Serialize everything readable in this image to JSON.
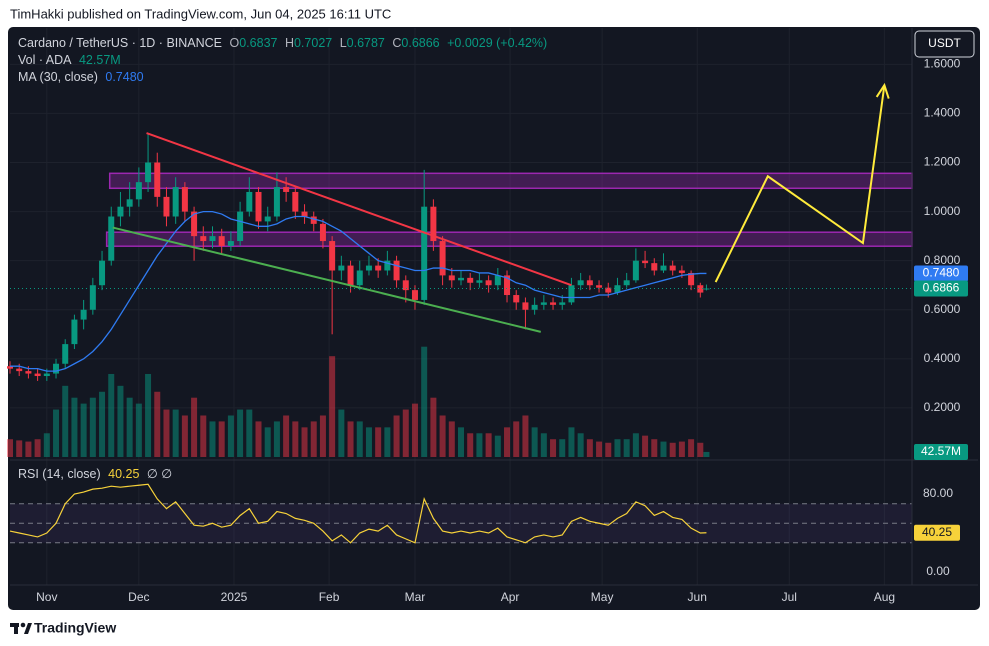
{
  "header": "TimHakki published on TradingView.com, Jun 04, 2025 16:11 UTC",
  "currency_button": "USDT",
  "footer_logo": "TradingView",
  "chart_data": [
    {
      "type": "candlestick",
      "symbol": "Cardano / TetherUS · 1D · BINANCE",
      "ohlc_letters": [
        "O",
        "H",
        "L",
        "C"
      ],
      "change": "+0.0029 (+0.42%)",
      "x": [
        -12,
        -9,
        -6,
        -3,
        0,
        3,
        6,
        9,
        12,
        15,
        18,
        21,
        24,
        27,
        30,
        33,
        36,
        39,
        42,
        45,
        48,
        51,
        54,
        57,
        60,
        63,
        66,
        69,
        72,
        75,
        78,
        81,
        84,
        87,
        90,
        93,
        96,
        99,
        102,
        105,
        108,
        111,
        114,
        117,
        120,
        123,
        126,
        129,
        132,
        135,
        138,
        141,
        144,
        147,
        150,
        153,
        156,
        159,
        162,
        165,
        168,
        171,
        174,
        177,
        180,
        183,
        186,
        189,
        192,
        195,
        198,
        201,
        204,
        207,
        210,
        213,
        215
      ],
      "open": [
        0.37,
        0.36,
        0.35,
        0.34,
        0.33,
        0.34,
        0.38,
        0.46,
        0.56,
        0.6,
        0.7,
        0.8,
        0.98,
        1.02,
        1.05,
        1.12,
        1.2,
        1.06,
        0.98,
        1.1,
        1.0,
        0.9,
        0.88,
        0.9,
        0.86,
        0.88,
        1.0,
        1.08,
        0.96,
        0.98,
        1.1,
        1.08,
        1.0,
        0.98,
        0.95,
        0.88,
        0.76,
        0.78,
        0.7,
        0.76,
        0.78,
        0.76,
        0.8,
        0.72,
        0.68,
        0.64,
        1.02,
        0.88,
        0.74,
        0.72,
        0.73,
        0.71,
        0.72,
        0.7,
        0.74,
        0.66,
        0.63,
        0.6,
        0.62,
        0.63,
        0.62,
        0.63,
        0.7,
        0.72,
        0.7,
        0.69,
        0.67,
        0.7,
        0.72,
        0.8,
        0.79,
        0.76,
        0.78,
        0.76,
        0.75,
        0.7,
        0.6837
      ],
      "high": [
        0.39,
        0.38,
        0.37,
        0.36,
        0.36,
        0.4,
        0.48,
        0.58,
        0.64,
        0.73,
        0.84,
        1.02,
        1.08,
        1.12,
        1.18,
        1.32,
        1.24,
        1.1,
        1.14,
        1.12,
        1.02,
        0.94,
        0.94,
        0.93,
        0.92,
        1.04,
        1.14,
        1.1,
        1.02,
        1.16,
        1.14,
        1.1,
        1.03,
        1.0,
        0.97,
        0.9,
        0.82,
        0.8,
        0.8,
        0.82,
        0.81,
        0.84,
        0.82,
        0.74,
        0.7,
        1.17,
        1.05,
        0.9,
        0.77,
        0.76,
        0.75,
        0.75,
        0.74,
        0.77,
        0.76,
        0.68,
        0.65,
        0.65,
        0.66,
        0.65,
        0.66,
        0.73,
        0.75,
        0.74,
        0.72,
        0.71,
        0.73,
        0.75,
        0.85,
        0.84,
        0.81,
        0.83,
        0.8,
        0.78,
        0.76,
        0.71,
        0.7027
      ],
      "low": [
        0.34,
        0.33,
        0.32,
        0.31,
        0.31,
        0.32,
        0.36,
        0.44,
        0.52,
        0.58,
        0.68,
        0.78,
        0.94,
        0.98,
        1.02,
        1.08,
        1.02,
        0.94,
        0.95,
        0.96,
        0.8,
        0.84,
        0.85,
        0.83,
        0.84,
        0.86,
        0.98,
        0.93,
        0.92,
        0.96,
        1.04,
        0.97,
        0.95,
        0.92,
        0.85,
        0.5,
        0.72,
        0.67,
        0.68,
        0.74,
        0.73,
        0.74,
        0.69,
        0.63,
        0.6,
        0.62,
        0.84,
        0.7,
        0.69,
        0.7,
        0.68,
        0.69,
        0.67,
        0.68,
        0.63,
        0.6,
        0.52,
        0.58,
        0.6,
        0.6,
        0.6,
        0.62,
        0.68,
        0.68,
        0.67,
        0.65,
        0.66,
        0.69,
        0.71,
        0.77,
        0.74,
        0.75,
        0.74,
        0.73,
        0.68,
        0.65,
        0.6787
      ],
      "close": [
        0.36,
        0.35,
        0.34,
        0.33,
        0.34,
        0.38,
        0.46,
        0.56,
        0.6,
        0.7,
        0.8,
        0.98,
        1.02,
        1.05,
        1.12,
        1.2,
        1.06,
        0.98,
        1.1,
        1.0,
        0.9,
        0.88,
        0.9,
        0.86,
        0.88,
        1.0,
        1.08,
        0.96,
        0.98,
        1.1,
        1.08,
        1.0,
        0.98,
        0.95,
        0.88,
        0.76,
        0.78,
        0.7,
        0.76,
        0.78,
        0.76,
        0.8,
        0.72,
        0.68,
        0.64,
        1.02,
        0.88,
        0.74,
        0.72,
        0.73,
        0.71,
        0.72,
        0.7,
        0.74,
        0.66,
        0.63,
        0.6,
        0.62,
        0.63,
        0.62,
        0.63,
        0.7,
        0.72,
        0.7,
        0.69,
        0.67,
        0.7,
        0.72,
        0.8,
        0.79,
        0.76,
        0.78,
        0.76,
        0.75,
        0.7,
        0.67,
        0.6866
      ],
      "up_color": "#089981",
      "down_color": "#f23645",
      "xlim": [
        -12,
        282
      ],
      "xticks": [
        {
          "value": 0,
          "label": "Nov"
        },
        {
          "value": 30,
          "label": "Dec"
        },
        {
          "value": 61,
          "label": "2025"
        },
        {
          "value": 92,
          "label": "Feb"
        },
        {
          "value": 120,
          "label": "Mar"
        },
        {
          "value": 151,
          "label": "Apr"
        },
        {
          "value": 181,
          "label": "May"
        },
        {
          "value": 212,
          "label": "Jun"
        },
        {
          "value": 242,
          "label": "Jul"
        },
        {
          "value": 273,
          "label": "Aug"
        }
      ],
      "ylim": [
        0,
        1.74
      ],
      "yticks": [
        {
          "value": 0.2,
          "label": "0.2000"
        },
        {
          "value": 0.4,
          "label": "0.4000"
        },
        {
          "value": 0.6,
          "label": "0.6000"
        },
        {
          "value": 0.8,
          "label": "0.8000"
        },
        {
          "value": 1.0,
          "label": "1.0000"
        },
        {
          "value": 1.2,
          "label": "1.2000"
        },
        {
          "value": 1.4,
          "label": "1.4000"
        },
        {
          "value": 1.6,
          "label": "1.6000"
        }
      ],
      "grid": true,
      "last_price_line": true,
      "ma": {
        "name": "MA (30, close)",
        "color": "#2f7bf2",
        "last_label": "0.7480",
        "values": [
          0.37,
          0.37,
          0.36,
          0.36,
          0.35,
          0.35,
          0.36,
          0.38,
          0.4,
          0.43,
          0.47,
          0.52,
          0.58,
          0.64,
          0.7,
          0.76,
          0.82,
          0.87,
          0.92,
          0.96,
          0.99,
          1.0,
          1.0,
          0.99,
          0.97,
          0.96,
          0.95,
          0.94,
          0.94,
          0.95,
          0.97,
          0.98,
          0.98,
          0.97,
          0.96,
          0.94,
          0.92,
          0.89,
          0.86,
          0.83,
          0.8,
          0.79,
          0.78,
          0.77,
          0.76,
          0.76,
          0.77,
          0.77,
          0.76,
          0.76,
          0.76,
          0.75,
          0.75,
          0.74,
          0.73,
          0.71,
          0.7,
          0.68,
          0.67,
          0.66,
          0.65,
          0.65,
          0.65,
          0.65,
          0.66,
          0.66,
          0.67,
          0.68,
          0.69,
          0.7,
          0.71,
          0.72,
          0.73,
          0.74,
          0.745,
          0.748,
          0.748
        ]
      },
      "volume": {
        "name": "Vol · ADA",
        "last_label": "42.57M",
        "ylim": [
          0,
          3600
        ],
        "values": [
          150,
          140,
          130,
          150,
          200,
          400,
          600,
          500,
          450,
          500,
          550,
          700,
          600,
          500,
          450,
          700,
          550,
          400,
          400,
          350,
          500,
          350,
          300,
          300,
          350,
          400,
          400,
          300,
          250,
          300,
          350,
          300,
          250,
          300,
          350,
          850,
          400,
          300,
          300,
          250,
          250,
          250,
          350,
          400,
          450,
          930,
          500,
          350,
          300,
          250,
          200,
          200,
          200,
          180,
          250,
          300,
          350,
          250,
          200,
          150,
          150,
          250,
          200,
          150,
          130,
          120,
          150,
          150,
          200,
          180,
          150,
          130,
          120,
          130,
          150,
          120,
          42.57
        ]
      },
      "trendlines": [
        {
          "color": "#f23645",
          "points": [
            [
              32.5,
              1.32
            ],
            [
              171,
              0.7
            ]
          ]
        },
        {
          "color": "#4caf50",
          "points": [
            [
              21.5,
              0.935
            ],
            [
              161,
              0.51
            ]
          ]
        }
      ],
      "zones": [
        {
          "color": "#9c27b0",
          "x0": 20.5,
          "y": [
            1.095,
            1.156
          ]
        },
        {
          "color": "#9c27b0",
          "x0": 19.5,
          "y": [
            0.859,
            0.916
          ]
        }
      ],
      "projection": {
        "color": "#ffeb3b",
        "points": [
          [
            218,
            0.713
          ],
          [
            235,
            1.144
          ],
          [
            266,
            0.872
          ],
          [
            273,
            1.515
          ]
        ]
      }
    },
    {
      "type": "line",
      "name": "RSI (14, close)",
      "icons": "∅ ∅",
      "color": "#f7d23a",
      "values": [
        42,
        40,
        38,
        36,
        40,
        50,
        70,
        80,
        82,
        85,
        86,
        88,
        87,
        88,
        89,
        90,
        75,
        65,
        72,
        60,
        48,
        47,
        50,
        46,
        48,
        58,
        65,
        50,
        52,
        62,
        60,
        55,
        53,
        50,
        42,
        32,
        38,
        30,
        40,
        44,
        42,
        48,
        38,
        34,
        30,
        75,
        55,
        42,
        40,
        42,
        40,
        42,
        40,
        45,
        36,
        33,
        30,
        36,
        38,
        36,
        38,
        52,
        56,
        52,
        50,
        48,
        55,
        60,
        72,
        68,
        58,
        62,
        56,
        54,
        45,
        40,
        40.25
      ],
      "ylim": [
        -13.3,
        111.8
      ],
      "yticks": [
        {
          "value": 0,
          "label": "0.00"
        },
        {
          "value": 80,
          "label": "80.00"
        }
      ],
      "bands": [
        70,
        50,
        30
      ]
    }
  ]
}
